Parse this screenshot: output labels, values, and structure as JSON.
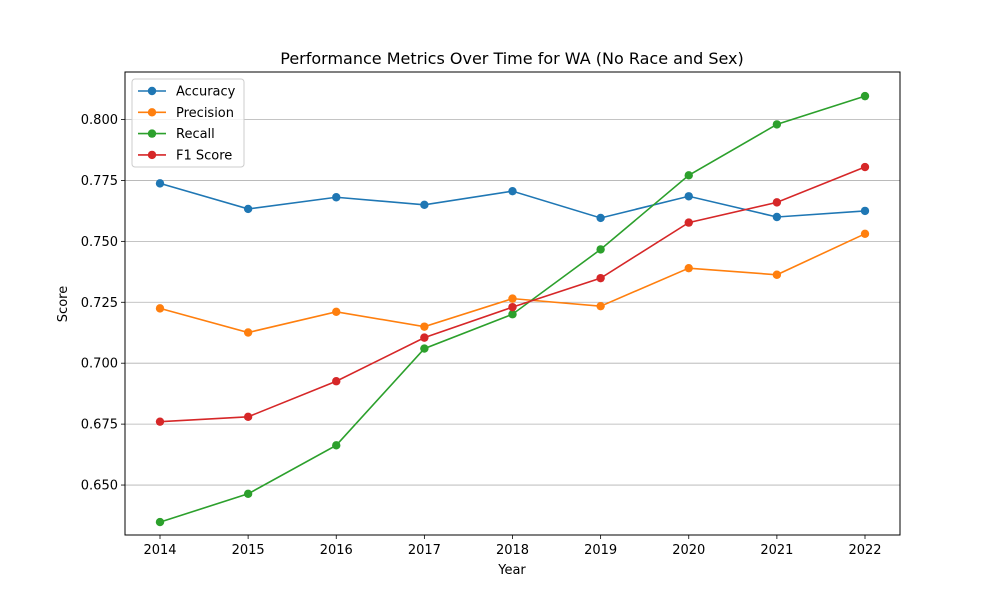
{
  "chart_data": {
    "type": "line",
    "title": "Performance Metrics Over Time for WA (No Race and Sex)",
    "xlabel": "Year",
    "ylabel": "Score",
    "x": [
      "2014",
      "2015",
      "2016",
      "2017",
      "2018",
      "2019",
      "2020",
      "2021",
      "2022"
    ],
    "ylim": [
      0.6295,
      0.8195
    ],
    "yticks": [
      "0.650",
      "0.675",
      "0.700",
      "0.725",
      "0.750",
      "0.775",
      "0.800"
    ],
    "grid": "horizontal",
    "legend_position": "top-left",
    "series": [
      {
        "name": "Accuracy",
        "color": "#1f77b4",
        "values": [
          0.7738,
          0.7633,
          0.7681,
          0.765,
          0.7706,
          0.7596,
          0.7685,
          0.76,
          0.7625
        ]
      },
      {
        "name": "Precision",
        "color": "#ff7f0e",
        "values": [
          0.7225,
          0.7126,
          0.7211,
          0.715,
          0.7265,
          0.7234,
          0.739,
          0.7363,
          0.7531
        ]
      },
      {
        "name": "Recall",
        "color": "#2ca02c",
        "values": [
          0.6348,
          0.6464,
          0.6663,
          0.706,
          0.7201,
          0.7467,
          0.7771,
          0.798,
          0.8096
        ]
      },
      {
        "name": "F1 Score",
        "color": "#d62728",
        "values": [
          0.676,
          0.678,
          0.6926,
          0.7105,
          0.723,
          0.7349,
          0.7577,
          0.766,
          0.7805
        ]
      }
    ]
  }
}
